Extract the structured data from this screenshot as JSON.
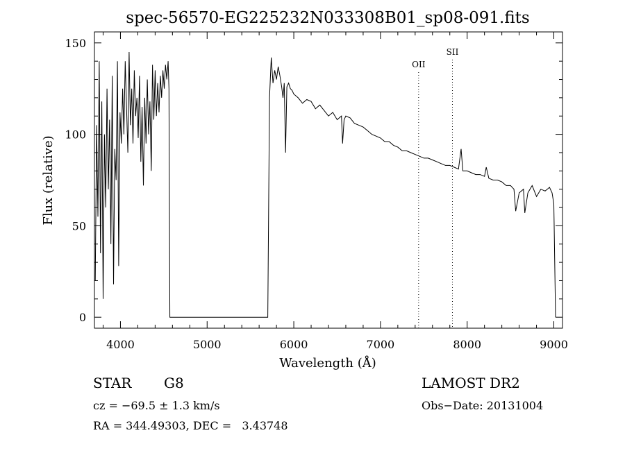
{
  "chart_data": {
    "type": "line",
    "title": "spec-56570-EG225232N033308B01_sp08-091.fits",
    "xlabel": "Wavelength (Å)",
    "ylabel": "Flux (relative)",
    "xlim": [
      3700,
      9100
    ],
    "ylim": [
      -6,
      156
    ],
    "x_ticks": [
      4000,
      5000,
      6000,
      7000,
      8000,
      9000
    ],
    "y_ticks": [
      0,
      50,
      100,
      150
    ],
    "grid": false,
    "series": [
      {
        "x": [
          3710,
          3725,
          3740,
          3755,
          3770,
          3785,
          3800,
          3815,
          3830,
          3845,
          3860,
          3875,
          3890,
          3905,
          3920,
          3935,
          3950,
          3965,
          3980,
          3995,
          4010,
          4025,
          4040,
          4055,
          4070,
          4085,
          4100,
          4115,
          4130,
          4145,
          4160,
          4175,
          4190,
          4205,
          4220,
          4235,
          4250,
          4265,
          4280,
          4295,
          4310,
          4325,
          4340,
          4355,
          4370,
          4385,
          4400,
          4415,
          4430,
          4445,
          4460,
          4475,
          4490,
          4505,
          4520,
          4535,
          4550,
          4560,
          4570,
          5700,
          5720,
          5740,
          5760,
          5780,
          5800,
          5820,
          5840,
          5860,
          5875,
          5890,
          5905,
          5920,
          5940,
          5960,
          5980,
          6000,
          6050,
          6100,
          6150,
          6200,
          6250,
          6300,
          6350,
          6400,
          6450,
          6500,
          6550,
          6563,
          6580,
          6600,
          6650,
          6700,
          6750,
          6800,
          6850,
          6900,
          6950,
          7000,
          7050,
          7100,
          7150,
          7200,
          7250,
          7300,
          7350,
          7400,
          7450,
          7500,
          7550,
          7600,
          7650,
          7700,
          7750,
          7800,
          7850,
          7900,
          7930,
          7950,
          8000,
          8050,
          8100,
          8150,
          8200,
          8220,
          8250,
          8300,
          8350,
          8400,
          8450,
          8500,
          8540,
          8560,
          8600,
          8650,
          8665,
          8700,
          8750,
          8800,
          8850,
          8900,
          8950,
          8980,
          9000,
          9010,
          9020
        ],
        "y": [
          20,
          105,
          55,
          140,
          35,
          118,
          10,
          100,
          60,
          125,
          70,
          108,
          40,
          132,
          18,
          92,
          75,
          140,
          28,
          112,
          95,
          125,
          100,
          140,
          115,
          90,
          145,
          105,
          125,
          95,
          135,
          110,
          120,
          98,
          132,
          85,
          115,
          72,
          120,
          95,
          130,
          100,
          118,
          80,
          138,
          108,
          135,
          110,
          128,
          112,
          132,
          120,
          135,
          125,
          138,
          130,
          140,
          125,
          0,
          0,
          120,
          142,
          128,
          135,
          130,
          137,
          132,
          126,
          120,
          128,
          90,
          126,
          128,
          125,
          124,
          122,
          120,
          117,
          119,
          118,
          114,
          116,
          113,
          110,
          112,
          108,
          110,
          95,
          108,
          110,
          109,
          106,
          105,
          104,
          102,
          100,
          99,
          98,
          96,
          96,
          94,
          93,
          91,
          91,
          90,
          89,
          88,
          87,
          87,
          86,
          85,
          84,
          83,
          83,
          82,
          81,
          92,
          80,
          80,
          79,
          78,
          78,
          77,
          82,
          76,
          75,
          75,
          74,
          72,
          72,
          70,
          58,
          68,
          70,
          57,
          68,
          72,
          66,
          70,
          69,
          71,
          68,
          62,
          30,
          0
        ]
      }
    ],
    "annotations": [
      {
        "label": "OII",
        "x": 7440
      },
      {
        "label": "SII",
        "x": 7830
      }
    ]
  },
  "info": {
    "object_class": "STAR",
    "subclass": "G8",
    "survey": "LAMOST DR2",
    "velocity": "cz = −69.5 ± 1.3 km/s",
    "obs_date": "Obs−Date: 20131004",
    "coords": "RA = 344.49303, DEC =   3.43748"
  }
}
